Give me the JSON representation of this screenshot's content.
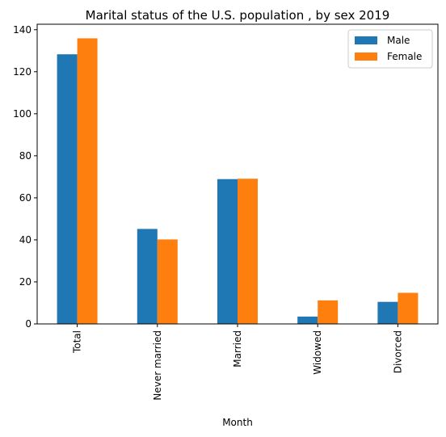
{
  "chart_data": {
    "type": "bar",
    "title": "Marital status of the U.S. population , by sex 2019",
    "xlabel": "Month",
    "ylabel": "",
    "categories": [
      "Total",
      "Never married",
      "Married",
      "Widowed",
      "Divorced"
    ],
    "series": [
      {
        "name": "Male",
        "color": "#1f77b4",
        "values": [
          128.3,
          45.2,
          68.9,
          3.5,
          10.5
        ]
      },
      {
        "name": "Female",
        "color": "#ff7f0e",
        "values": [
          135.9,
          40.2,
          69.1,
          11.2,
          14.8
        ]
      }
    ],
    "ylim": [
      0,
      142.6
    ],
    "yticks": [
      0,
      20,
      40,
      60,
      80,
      100,
      120,
      140
    ],
    "grid": false,
    "legend_position": "top-right"
  }
}
